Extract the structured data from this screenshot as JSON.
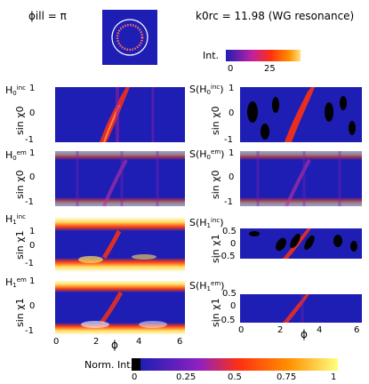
{
  "header": {
    "illumination_label": "ϕill = π",
    "resonance_label": "k0rc = 11.98 (WG resonance)"
  },
  "intensity_colorbar": {
    "label": "Int.",
    "ticks": [
      "0",
      "25"
    ]
  },
  "panels_left": [
    {
      "label": "H",
      "sub": "0",
      "sup": "inc",
      "ylabel": "sin χ0",
      "yticks": [
        "1",
        "0",
        "-1"
      ]
    },
    {
      "label": "H",
      "sub": "0",
      "sup": "em",
      "ylabel": "sin χ0",
      "yticks": [
        "1",
        "0",
        "-1"
      ]
    },
    {
      "label": "H",
      "sub": "1",
      "sup": "inc",
      "ylabel": "sin χ1",
      "yticks": [
        "1",
        "0",
        "-1"
      ]
    },
    {
      "label": "H",
      "sub": "1",
      "sup": "em",
      "ylabel": "sin χ1",
      "yticks": [
        "1",
        "0",
        "-1"
      ]
    }
  ],
  "panels_right": [
    {
      "label": "S(H",
      "sub": "0",
      "sup": "inc",
      "close": ")",
      "ylabel": "sin χ0",
      "yticks": [
        "1",
        "0",
        "-1"
      ]
    },
    {
      "label": "S(H",
      "sub": "0",
      "sup": "em",
      "close": ")",
      "ylabel": "sin χ0",
      "yticks": [
        "1",
        "0",
        "-1"
      ]
    },
    {
      "label": "S(H",
      "sub": "1",
      "sup": "inc",
      "close": ")",
      "ylabel": "sin χ1",
      "yticks": [
        "0.5",
        "0",
        "-0.5"
      ]
    },
    {
      "label": "S(H",
      "sub": "1",
      "sup": "em",
      "close": ")",
      "ylabel": "sin χ1",
      "yticks": [
        "0.5",
        "0",
        "-0.5"
      ]
    }
  ],
  "x_axis": {
    "label": "ϕ",
    "ticks": [
      "0",
      "2",
      "4",
      "6"
    ]
  },
  "norm_colorbar": {
    "label": "Norm. Int.",
    "ticks": [
      "0",
      "0.25",
      "0.5",
      "0.75",
      "1"
    ]
  },
  "colors": {
    "background": "#1e1eb4",
    "ridge": "#ff3010",
    "highlight": "#ffe060"
  }
}
